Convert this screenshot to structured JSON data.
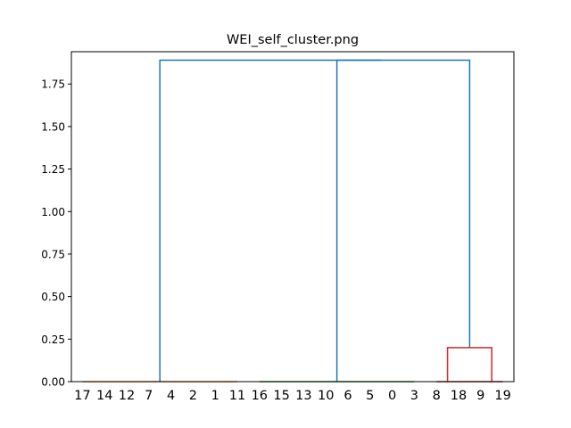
{
  "chart_data": {
    "type": "dendrogram",
    "title": "WEI_self_cluster.png",
    "xlabel": "",
    "ylabel": "",
    "ylim": [
      0,
      1.94
    ],
    "grid": false,
    "leaf_order": [
      "17",
      "14",
      "12",
      "7",
      "4",
      "2",
      "1",
      "11",
      "16",
      "15",
      "13",
      "10",
      "6",
      "5",
      "0",
      "3",
      "8",
      "18",
      "9",
      "19"
    ],
    "yticks": [
      "0.00",
      "0.25",
      "0.50",
      "0.75",
      "1.00",
      "1.25",
      "1.50",
      "1.75"
    ],
    "ytick_values": [
      0,
      0.25,
      0.5,
      0.75,
      1.0,
      1.25,
      1.5,
      1.75
    ],
    "clusters": [
      {
        "color": "#ff7f0e",
        "leaves_from": 0,
        "leaves_to": 7,
        "height": 0.0
      },
      {
        "color": "#2ca02c",
        "leaves_from": 8,
        "leaves_to": 15,
        "height": 0.0
      },
      {
        "color": "#d62728",
        "leaves_from": 16,
        "leaves_to": 19,
        "height": 0.0
      }
    ],
    "links": [
      {
        "color": "#d62728",
        "left_leaf_range": [
          16,
          17
        ],
        "right_leaf_range": [
          18,
          19
        ],
        "height": 0.2,
        "left_height": 0.0,
        "right_height": 0.0
      },
      {
        "color": "#1f77b4",
        "left_leaf_range": [
          8,
          15
        ],
        "right_leaf_range": [
          16,
          19
        ],
        "height": 1.89,
        "left_height": 0.0,
        "right_height": 0.2
      },
      {
        "color": "#1f77b4",
        "left_leaf_range": [
          0,
          7
        ],
        "right_leaf_range": [
          8,
          19
        ],
        "height": 1.89,
        "left_height": 0.0,
        "right_height": 1.89
      }
    ]
  }
}
